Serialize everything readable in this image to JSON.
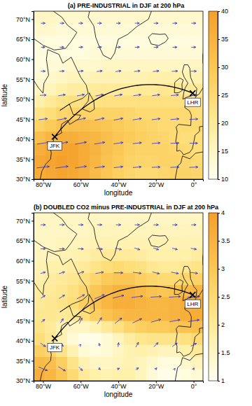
{
  "chart_data": [
    {
      "type": "heatmap",
      "title": "(a) PRE-INDUSTRIAL in DJF at 200 hPa",
      "x_label": "longitude",
      "y_label": "latitude",
      "xlim": [
        -85,
        5
      ],
      "ylim": [
        30,
        72
      ],
      "xticks": [
        {
          "value": -80,
          "label": "80°W"
        },
        {
          "value": -60,
          "label": "60°W"
        },
        {
          "value": -40,
          "label": "40°W"
        },
        {
          "value": -20,
          "label": "20°W"
        },
        {
          "value": 0,
          "label": "0°"
        }
      ],
      "yticks": [
        {
          "value": 30,
          "label": "30°N"
        },
        {
          "value": 35,
          "label": "35°N"
        },
        {
          "value": 40,
          "label": "40°N"
        },
        {
          "value": 45,
          "label": "45°N"
        },
        {
          "value": 50,
          "label": "50°N"
        },
        {
          "value": 55,
          "label": "55°N"
        },
        {
          "value": 60,
          "label": "60°N"
        },
        {
          "value": 65,
          "label": "65°N"
        },
        {
          "value": 70,
          "label": "70°N"
        }
      ],
      "cells": {
        "lon": [
          -82,
          -76,
          -70,
          -64,
          -58,
          -52,
          -46,
          -40,
          -34,
          -28,
          -22,
          -16,
          -10,
          -4,
          2
        ],
        "lat": [
          31.5,
          34.5,
          37.5,
          40.5,
          43.5,
          46.5,
          49.5,
          52.5,
          55.5,
          58.5,
          61.5,
          64.5,
          67.5,
          70.5
        ],
        "values": [
          [
            37,
            38,
            39,
            38,
            36,
            33,
            30,
            28,
            26,
            25,
            25,
            26,
            27,
            27,
            26
          ],
          [
            38,
            39,
            40,
            39,
            37,
            34,
            31,
            29,
            27,
            26,
            26,
            27,
            27,
            26,
            25
          ],
          [
            36,
            38,
            39,
            39,
            37,
            35,
            32,
            30,
            28,
            27,
            27,
            27,
            26,
            25,
            24
          ],
          [
            32,
            34,
            36,
            36,
            35,
            34,
            32,
            30,
            29,
            28,
            27,
            26,
            25,
            24,
            24
          ],
          [
            27,
            29,
            31,
            32,
            32,
            31,
            30,
            29,
            28,
            27,
            26,
            25,
            25,
            25,
            25
          ],
          [
            22,
            24,
            26,
            27,
            27,
            27,
            27,
            27,
            26,
            25,
            25,
            25,
            25,
            25,
            24
          ],
          [
            18,
            20,
            22,
            23,
            23,
            23,
            23,
            23,
            23,
            23,
            23,
            23,
            23,
            23,
            22
          ],
          [
            15,
            16,
            18,
            19,
            19,
            20,
            20,
            20,
            20,
            20,
            20,
            21,
            21,
            20,
            20
          ],
          [
            13,
            14,
            15,
            16,
            16,
            17,
            17,
            17,
            17,
            17,
            18,
            18,
            18,
            17,
            17
          ],
          [
            12,
            13,
            13,
            14,
            14,
            14,
            15,
            15,
            15,
            15,
            15,
            15,
            15,
            15,
            15
          ],
          [
            12,
            12,
            12,
            12,
            12,
            13,
            13,
            13,
            13,
            13,
            13,
            13,
            13,
            13,
            13
          ],
          [
            12,
            12,
            12,
            12,
            12,
            12,
            12,
            12,
            12,
            12,
            12,
            12,
            12,
            12,
            12
          ],
          [
            14,
            14,
            13,
            13,
            13,
            13,
            13,
            13,
            13,
            13,
            13,
            13,
            13,
            13,
            13
          ],
          [
            15,
            15,
            14,
            14,
            14,
            14,
            14,
            14,
            14,
            14,
            14,
            14,
            14,
            14,
            14
          ]
        ]
      },
      "colorbar": {
        "range": [
          10,
          40
        ],
        "ticks": [
          10,
          15,
          20,
          25,
          30,
          35,
          40
        ]
      },
      "vectors": {
        "lon": [
          -80,
          -70,
          -60,
          -50,
          -40,
          -30,
          -20,
          -10,
          0
        ],
        "lat": [
          33,
          39,
          45,
          51,
          57,
          63,
          69
        ],
        "u": [
          [
            36,
            36,
            33,
            29,
            26,
            24,
            24,
            25,
            25
          ],
          [
            34,
            35,
            33,
            30,
            27,
            25,
            24,
            24,
            23
          ],
          [
            25,
            27,
            28,
            27,
            26,
            25,
            24,
            24,
            24
          ],
          [
            18,
            20,
            21,
            22,
            22,
            22,
            22,
            22,
            21
          ],
          [
            13,
            14,
            15,
            16,
            16,
            17,
            17,
            17,
            16
          ],
          [
            11,
            12,
            12,
            12,
            13,
            13,
            13,
            13,
            13
          ],
          [
            12,
            12,
            12,
            12,
            12,
            13,
            13,
            13,
            13
          ]
        ],
        "v": [
          [
            4,
            5,
            5,
            4,
            3,
            2,
            1,
            1,
            1
          ],
          [
            5,
            6,
            6,
            5,
            4,
            3,
            2,
            1,
            0
          ],
          [
            3,
            5,
            6,
            6,
            5,
            4,
            3,
            2,
            1
          ],
          [
            1,
            3,
            4,
            4,
            4,
            3,
            3,
            2,
            1
          ],
          [
            0,
            1,
            2,
            2,
            2,
            2,
            2,
            1,
            0
          ],
          [
            0,
            0,
            1,
            1,
            1,
            1,
            1,
            0,
            0
          ],
          [
            0,
            0,
            0,
            0,
            0,
            0,
            0,
            0,
            0
          ]
        ]
      },
      "airports": [
        {
          "name": "JFK",
          "lon": -73.8,
          "lat": 40.6
        },
        {
          "name": "LHR",
          "lon": -0.5,
          "lat": 51.5
        }
      ]
    },
    {
      "type": "heatmap",
      "title": "(b) DOUBLED CO2 minus PRE-INDUSTRIAL in DJF at 200 hPa",
      "x_label": "longitude",
      "y_label": "latitude",
      "xlim": [
        -85,
        5
      ],
      "ylim": [
        30,
        72
      ],
      "xticks": [
        {
          "value": -80,
          "label": "80°W"
        },
        {
          "value": -60,
          "label": "60°W"
        },
        {
          "value": -40,
          "label": "40°W"
        },
        {
          "value": -20,
          "label": "20°W"
        },
        {
          "value": 0,
          "label": "0°"
        }
      ],
      "yticks": [
        {
          "value": 30,
          "label": "30°N"
        },
        {
          "value": 35,
          "label": "35°N"
        },
        {
          "value": 40,
          "label": "40°N"
        },
        {
          "value": 45,
          "label": "45°N"
        },
        {
          "value": 50,
          "label": "50°N"
        },
        {
          "value": 55,
          "label": "55°N"
        },
        {
          "value": 60,
          "label": "60°N"
        },
        {
          "value": 65,
          "label": "65°N"
        },
        {
          "value": 70,
          "label": "70°N"
        }
      ],
      "cells": {
        "lon": [
          -82,
          -76,
          -70,
          -64,
          -58,
          -52,
          -46,
          -40,
          -34,
          -28,
          -22,
          -16,
          -10,
          -4,
          2
        ],
        "lat": [
          31.5,
          34.5,
          37.5,
          40.5,
          43.5,
          46.5,
          49.5,
          52.5,
          55.5,
          58.5,
          61.5,
          64.5,
          67.5,
          70.5
        ],
        "values": [
          [
            3.6,
            3.4,
            3.0,
            2.5,
            2.0,
            1.8,
            1.7,
            1.8,
            1.8,
            1.6,
            1.3,
            1.1,
            1.1,
            1.2,
            1.3
          ],
          [
            3.3,
            3.2,
            2.8,
            2.2,
            1.7,
            1.5,
            1.5,
            1.6,
            1.7,
            1.6,
            1.4,
            1.2,
            1.2,
            1.4,
            1.6
          ],
          [
            2.8,
            2.6,
            2.2,
            1.7,
            1.3,
            1.2,
            1.3,
            1.5,
            1.7,
            1.8,
            1.7,
            1.6,
            1.6,
            1.8,
            2.0
          ],
          [
            2.4,
            2.1,
            1.7,
            1.3,
            1.1,
            1.1,
            1.3,
            1.6,
            1.9,
            2.1,
            2.2,
            2.2,
            2.2,
            2.3,
            2.5
          ],
          [
            2.2,
            2.0,
            1.7,
            1.5,
            1.5,
            1.7,
            2.0,
            2.3,
            2.6,
            2.8,
            2.9,
            2.9,
            3.0,
            3.1,
            3.2
          ],
          [
            2.1,
            2.1,
            2.0,
            2.1,
            2.4,
            2.8,
            3.1,
            3.3,
            3.4,
            3.4,
            3.4,
            3.4,
            3.5,
            3.6,
            3.7
          ],
          [
            2.0,
            2.1,
            2.2,
            2.4,
            2.8,
            3.1,
            3.4,
            3.6,
            3.6,
            3.5,
            3.4,
            3.4,
            3.5,
            3.7,
            3.8
          ],
          [
            1.9,
            2.0,
            2.1,
            2.3,
            2.6,
            3.0,
            3.3,
            3.5,
            3.5,
            3.3,
            3.1,
            3.0,
            3.1,
            3.3,
            3.4
          ],
          [
            1.8,
            1.9,
            2.0,
            2.1,
            2.3,
            2.6,
            2.9,
            3.0,
            3.0,
            2.8,
            2.6,
            2.5,
            2.5,
            2.6,
            2.7
          ],
          [
            1.7,
            1.8,
            1.8,
            1.9,
            2.0,
            2.2,
            2.4,
            2.5,
            2.4,
            2.3,
            2.1,
            2.0,
            2.0,
            2.1,
            2.2
          ],
          [
            1.6,
            1.6,
            1.7,
            1.7,
            1.8,
            1.9,
            2.0,
            2.0,
            2.0,
            1.9,
            1.8,
            1.8,
            1.8,
            1.8,
            1.9
          ],
          [
            1.5,
            1.5,
            1.6,
            1.6,
            1.6,
            1.7,
            1.7,
            1.7,
            1.7,
            1.7,
            1.7,
            1.7,
            1.7,
            1.7,
            1.7
          ],
          [
            1.5,
            1.5,
            1.5,
            1.5,
            1.5,
            1.6,
            1.6,
            1.6,
            1.6,
            1.6,
            1.6,
            1.6,
            1.6,
            1.6,
            1.6
          ],
          [
            1.5,
            1.5,
            1.5,
            1.5,
            1.5,
            1.5,
            1.5,
            1.5,
            1.5,
            1.5,
            1.5,
            1.5,
            1.5,
            1.5,
            1.5
          ]
        ]
      },
      "colorbar": {
        "range": [
          1,
          4
        ],
        "ticks": [
          1,
          1.5,
          2,
          2.5,
          3,
          3.5,
          4
        ]
      },
      "vectors": {
        "lon": [
          -80,
          -70,
          -60,
          -50,
          -40,
          -30,
          -20,
          -10,
          0
        ],
        "lat": [
          33,
          39,
          45,
          51,
          57,
          63,
          69
        ],
        "u": [
          [
            2.5,
            2.0,
            1.0,
            0.5,
            0.6,
            0.8,
            0.5,
            0.2,
            0.3
          ],
          [
            1.5,
            0.8,
            0.2,
            -0.3,
            0.2,
            0.8,
            1.2,
            1.4,
            1.6
          ],
          [
            1.0,
            0.8,
            0.8,
            1.2,
            2.0,
            2.6,
            2.8,
            3.0,
            3.2
          ],
          [
            1.2,
            1.6,
            2.2,
            2.8,
            3.2,
            3.2,
            3.1,
            3.3,
            3.5
          ],
          [
            1.4,
            1.6,
            1.9,
            2.3,
            2.6,
            2.4,
            2.0,
            2.1,
            2.3
          ],
          [
            1.4,
            1.5,
            1.6,
            1.7,
            1.8,
            1.6,
            1.5,
            1.5,
            1.6
          ],
          [
            1.4,
            1.4,
            1.4,
            1.4,
            1.4,
            1.4,
            1.4,
            1.4,
            1.4
          ]
        ],
        "v": [
          [
            -1.0,
            -1.2,
            -1.0,
            -0.5,
            0.3,
            0.6,
            0.5,
            0.3,
            0.5
          ],
          [
            -1.0,
            -0.8,
            0.2,
            0.8,
            1.2,
            1.4,
            1.2,
            1.0,
            0.8
          ],
          [
            0.8,
            1.2,
            1.6,
            1.8,
            1.6,
            1.2,
            0.8,
            0.6,
            0.5
          ],
          [
            0.8,
            1.0,
            1.2,
            1.2,
            0.8,
            0.4,
            0.2,
            0.2,
            0.2
          ],
          [
            0.4,
            0.5,
            0.6,
            0.4,
            0.0,
            -0.3,
            -0.5,
            -0.4,
            -0.3
          ],
          [
            0.0,
            0.0,
            -0.1,
            -0.2,
            -0.4,
            -0.5,
            -0.5,
            -0.4,
            -0.3
          ],
          [
            0,
            0,
            0,
            0,
            0,
            0,
            0,
            0,
            0
          ]
        ]
      },
      "airports": [
        {
          "name": "JFK",
          "lon": -73.8,
          "lat": 40.6
        },
        {
          "name": "LHR",
          "lon": -0.5,
          "lat": 51.5
        }
      ]
    }
  ]
}
